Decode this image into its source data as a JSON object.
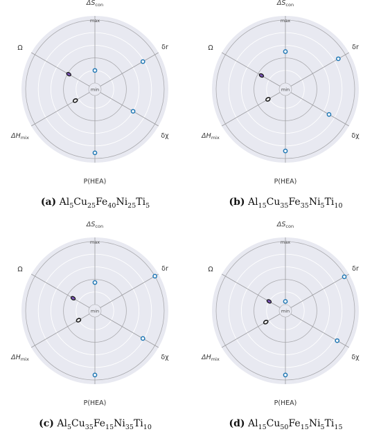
{
  "chart_data": [
    {
      "panel_letter": "(a)",
      "caption": [
        [
          "Al",
          "5"
        ],
        [
          "Cu",
          "25"
        ],
        [
          "Fe",
          "40"
        ],
        [
          "Ni",
          "25"
        ],
        [
          "Ti",
          "5"
        ]
      ],
      "type": "radar",
      "axes": [
        "ΔS_con",
        "δr",
        "δχ",
        "P(HEA)",
        "ΔH_mix",
        "Ω"
      ],
      "scale_labels": {
        "min": "min",
        "max": "max"
      },
      "values": {
        "ΔS_con": 0.2,
        "δr": 0.78,
        "δχ": 0.6,
        "P(HEA)": 0.91,
        "ΔH_mix": 0.26,
        "Ω": 0.38
      }
    },
    {
      "panel_letter": "(b)",
      "caption": [
        [
          "Al",
          "15"
        ],
        [
          "Cu",
          "35"
        ],
        [
          "Fe",
          "35"
        ],
        [
          "Ni",
          "5"
        ],
        [
          "Ti",
          "10"
        ]
      ],
      "type": "radar",
      "axes": [
        "ΔS_con",
        "δr",
        "δχ",
        "P(HEA)",
        "ΔH_mix",
        "Ω"
      ],
      "scale_labels": {
        "min": "min",
        "max": "max"
      },
      "values": {
        "ΔS_con": 0.5,
        "δr": 0.87,
        "δχ": 0.7,
        "P(HEA)": 0.88,
        "ΔH_mix": 0.22,
        "Ω": 0.34
      }
    },
    {
      "panel_letter": "(c)",
      "caption": [
        [
          "Al",
          "5"
        ],
        [
          "Cu",
          "35"
        ],
        [
          "Fe",
          "15"
        ],
        [
          "Ni",
          "35"
        ],
        [
          "Ti",
          "10"
        ]
      ],
      "type": "radar",
      "axes": [
        "ΔS_con",
        "δr",
        "δχ",
        "P(HEA)",
        "ΔH_mix",
        "Ω"
      ],
      "scale_labels": {
        "min": "min",
        "max": "max"
      },
      "values": {
        "ΔS_con": 0.35,
        "δr": 1.0,
        "δχ": 0.78,
        "P(HEA)": 0.92,
        "ΔH_mix": 0.2,
        "Ω": 0.3
      }
    },
    {
      "panel_letter": "(d)",
      "caption": [
        [
          "Al",
          "15"
        ],
        [
          "Cu",
          "50"
        ],
        [
          "Fe",
          "15"
        ],
        [
          "Ni",
          "5"
        ],
        [
          "Ti",
          "15"
        ]
      ],
      "type": "radar",
      "axes": [
        "ΔS_con",
        "δr",
        "δχ",
        "P(HEA)",
        "ΔH_mix",
        "Ω"
      ],
      "scale_labels": {
        "min": "min",
        "max": "max"
      },
      "values": {
        "ΔS_con": 0.05,
        "δr": 0.98,
        "δχ": 0.85,
        "P(HEA)": 0.92,
        "ΔH_mix": 0.26,
        "Ω": 0.2
      }
    }
  ],
  "colors": {
    "background": "#e8e9f1",
    "grid_minor": "#ffffff",
    "grid_major": "#a9a9ad",
    "spoke": "#9a9a9e",
    "point": "#1f77b4",
    "marker_dark": "#1c1c1c",
    "marker_purple": "#7a54b8"
  }
}
